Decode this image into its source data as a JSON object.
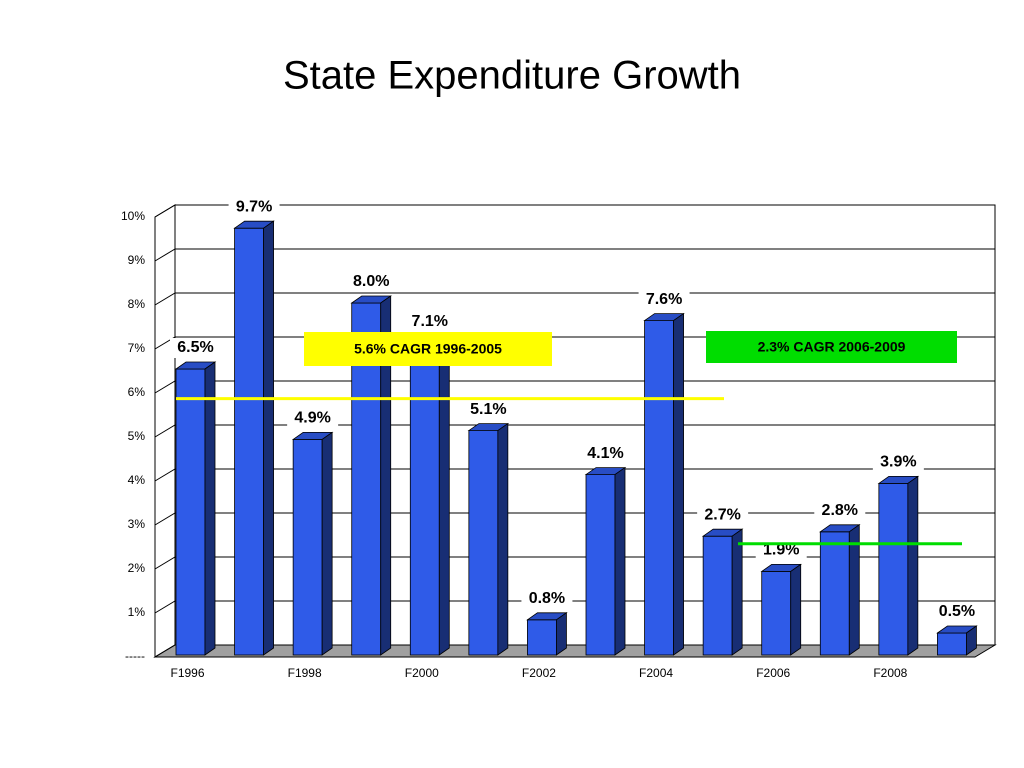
{
  "chart_data": {
    "type": "bar3d",
    "title": "State Expenditure Growth",
    "categories": [
      "F1996",
      null,
      "F1998",
      null,
      "F2000",
      null,
      "F2002",
      null,
      "F2004",
      null,
      "F2006",
      null,
      "F2008",
      null
    ],
    "values": [
      6.5,
      9.7,
      4.9,
      8.0,
      7.1,
      5.1,
      0.8,
      4.1,
      7.6,
      2.7,
      1.9,
      2.8,
      3.9,
      0.5
    ],
    "value_labels": [
      "6.5%",
      "9.7%",
      "4.9%",
      "8.0%",
      "7.1%",
      "5.1%",
      "0.8%",
      "4.1%",
      "7.6%",
      "2.7%",
      "1.9%",
      "2.8%",
      "3.9%",
      "0.5%"
    ],
    "color": "#2f5be8",
    "ylim": [
      0,
      10
    ],
    "yticks": [
      {
        "value": 0,
        "label": "-----"
      },
      {
        "value": 1,
        "label": "1%"
      },
      {
        "value": 2,
        "label": "2%"
      },
      {
        "value": 3,
        "label": "3%"
      },
      {
        "value": 4,
        "label": "4%"
      },
      {
        "value": 5,
        "label": "5%"
      },
      {
        "value": 6,
        "label": "6%"
      },
      {
        "value": 7,
        "label": "7%"
      },
      {
        "value": 8,
        "label": "8%"
      },
      {
        "value": 9,
        "label": "9%"
      },
      {
        "value": 10,
        "label": "10%"
      }
    ],
    "grid": true,
    "annotations": [
      {
        "text": "5.6% CAGR 1996-2005",
        "value": 5.6,
        "color": "#ffff00"
      },
      {
        "text": "2.3% CAGR 2006-2009",
        "value": 2.3,
        "color": "#00dd00"
      }
    ]
  }
}
